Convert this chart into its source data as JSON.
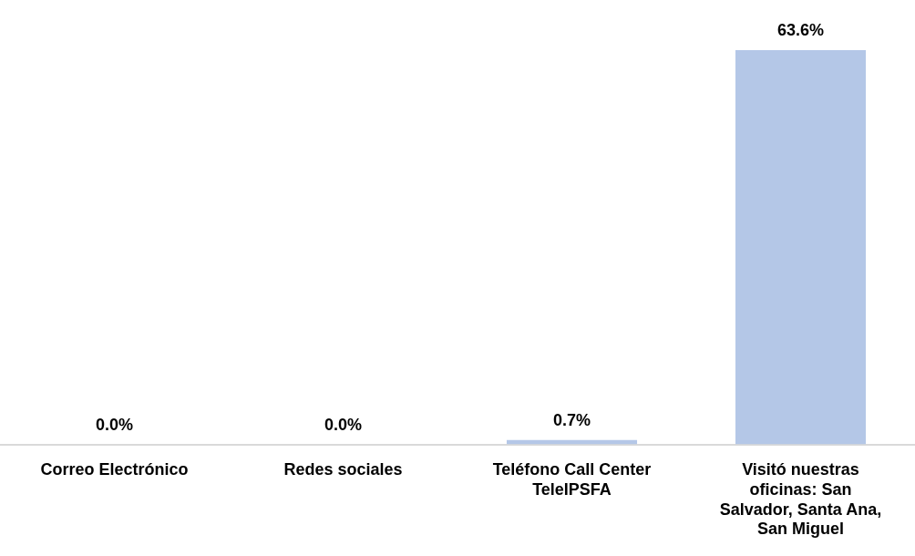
{
  "chart_data": {
    "type": "bar",
    "categories": [
      "Correo Electrónico",
      "Redes sociales",
      "Teléfono Call Center TeleIPSFA",
      "Visitó nuestras oficinas: San Salvador, Santa Ana, San Miguel"
    ],
    "values": [
      0,
      0,
      0.7,
      63.6
    ],
    "color": "#b4c7e7",
    "value_labels": [
      "0.0%",
      "0.0%",
      "0.7%",
      "63.6%"
    ],
    "grid": false,
    "legend": false
  }
}
